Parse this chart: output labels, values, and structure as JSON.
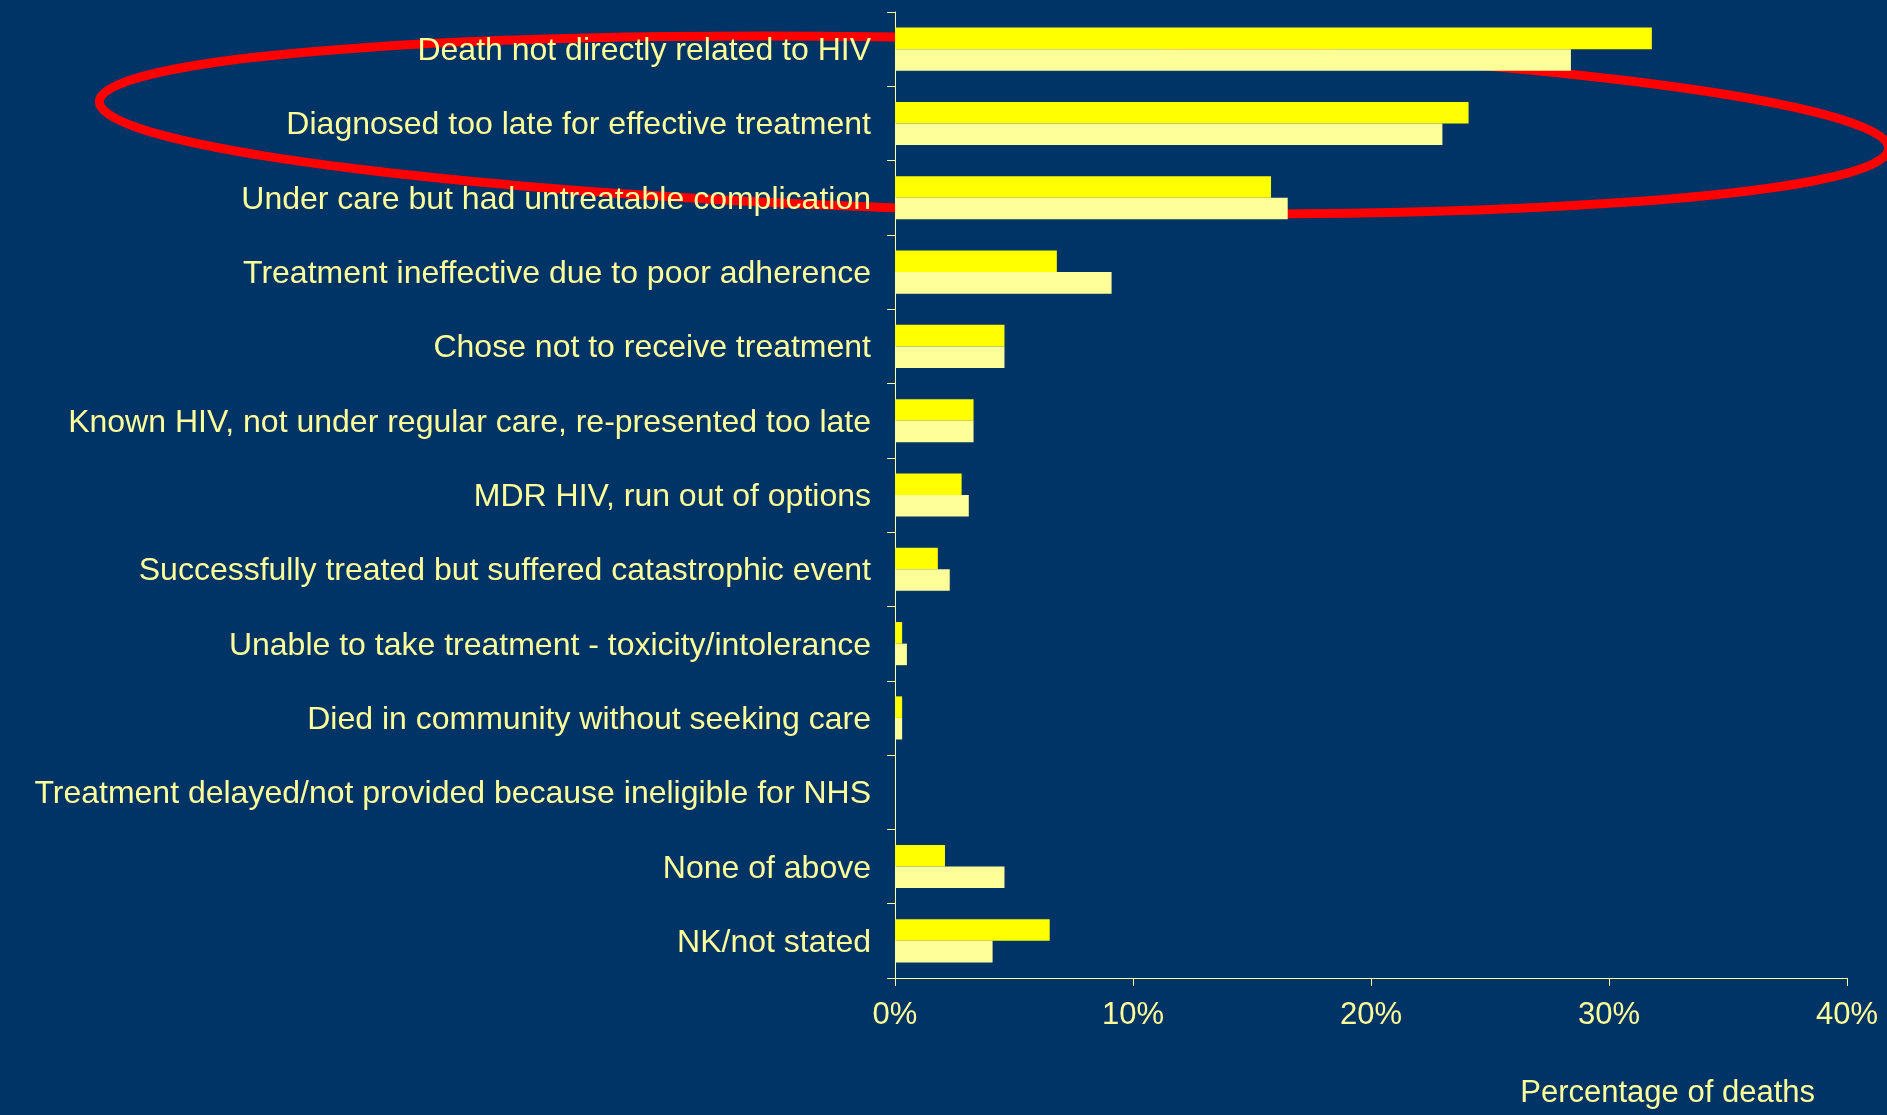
{
  "chart_data": {
    "type": "bar",
    "orientation": "horizontal",
    "xlabel": "Percentage of deaths",
    "categories": [
      "Death not directly related to HIV",
      "Diagnosed too late for effective treatment",
      "Under care but had untreatable complication",
      "Treatment ineffective due to poor adherence",
      "Chose not to receive treatment",
      "Known HIV, not under regular care, re-presented too late",
      "MDR HIV, run out of options",
      "Successfully treated but suffered catastrophic event",
      "Unable to take treatment - toxicity/intolerance",
      "Died in community without seeking care",
      "Treatment delayed/not provided because ineligible for NHS",
      "None of above",
      "NK/not stated"
    ],
    "series": [
      {
        "color": "#ffff00",
        "values": [
          31.8,
          24.1,
          15.8,
          6.8,
          4.6,
          3.3,
          2.8,
          1.8,
          0.3,
          0.3,
          0,
          2.1,
          6.5
        ]
      },
      {
        "color": "#ffff99",
        "values": [
          28.4,
          23.0,
          16.5,
          9.1,
          4.6,
          3.3,
          3.1,
          2.3,
          0.5,
          0.3,
          0,
          4.6,
          4.1
        ]
      }
    ],
    "xlim": [
      0,
      40
    ],
    "xticks": [
      {
        "value": 0,
        "label": "0%"
      },
      {
        "value": 10,
        "label": "10%"
      },
      {
        "value": 20,
        "label": "20%"
      },
      {
        "value": 30,
        "label": "30%"
      },
      {
        "value": 40,
        "label": "40%"
      }
    ],
    "grid": false
  }
}
